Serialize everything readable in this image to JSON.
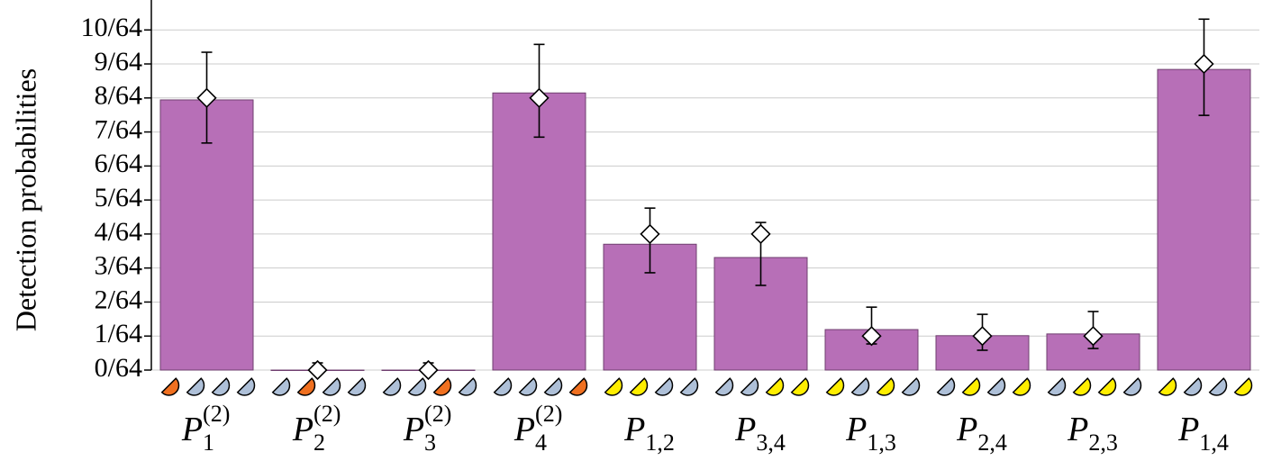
{
  "chart_data": {
    "type": "bar",
    "y_label": "Detection probabilities",
    "categories": [
      {
        "base": "P",
        "sub": "1",
        "sup": "(2)"
      },
      {
        "base": "P",
        "sub": "2",
        "sup": "(2)"
      },
      {
        "base": "P",
        "sub": "3",
        "sup": "(2)"
      },
      {
        "base": "P",
        "sub": "4",
        "sup": "(2)"
      },
      {
        "base": "P",
        "sub": "1,2"
      },
      {
        "base": "P",
        "sub": "3,4"
      },
      {
        "base": "P",
        "sub": "1,3"
      },
      {
        "base": "P",
        "sub": "2,4"
      },
      {
        "base": "P",
        "sub": "2,3"
      },
      {
        "base": "P",
        "sub": "1,4"
      }
    ],
    "series": [
      {
        "color": "#b76fb7",
        "values": [
          0.1241,
          0,
          0,
          0.1273,
          0.0578,
          0.0517,
          0.0186,
          0.0158,
          0.0166,
          0.1381
        ],
        "errors_minus": [
          0.0198,
          0,
          0,
          0.0203,
          0.0131,
          0.0128,
          0.0066,
          0.0067,
          0.0067,
          0.0211
        ],
        "errors_plus": [
          0.0219,
          0.0033,
          0.0033,
          0.0223,
          0.0166,
          0.0161,
          0.0103,
          0.0098,
          0.0103,
          0.0231
        ]
      },
      {
        "color": "#ffffff",
        "marker": "diamond",
        "values": [
          0.125,
          0,
          0,
          0.125,
          0.0625,
          0.0625,
          0.015625,
          0.015625,
          0.015625,
          0.140625
        ]
      }
    ],
    "icon_colors": [
      [
        "#f07020",
        "#aec0d8",
        "#aec0d8",
        "#aec0d8"
      ],
      [
        "#aec0d8",
        "#f07020",
        "#aec0d8",
        "#aec0d8"
      ],
      [
        "#aec0d8",
        "#aec0d8",
        "#f07020",
        "#aec0d8"
      ],
      [
        "#aec0d8",
        "#aec0d8",
        "#aec0d8",
        "#f07020"
      ],
      [
        "#ffee00",
        "#ffee00",
        "#aec0d8",
        "#aec0d8"
      ],
      [
        "#aec0d8",
        "#aec0d8",
        "#ffee00",
        "#ffee00"
      ],
      [
        "#ffee00",
        "#aec0d8",
        "#ffee00",
        "#aec0d8"
      ],
      [
        "#aec0d8",
        "#ffee00",
        "#aec0d8",
        "#ffee00"
      ],
      [
        "#aec0d8",
        "#ffee00",
        "#ffee00",
        "#aec0d8"
      ],
      [
        "#ffee00",
        "#aec0d8",
        "#aec0d8",
        "#ffee00"
      ]
    ],
    "ylim": [
      0,
      0.17
    ],
    "yticks": [
      {
        "value": 0,
        "label": "0/64"
      },
      {
        "value": 0.015625,
        "label": "1/64"
      },
      {
        "value": 0.03125,
        "label": "2/64"
      },
      {
        "value": 0.046875,
        "label": "3/64"
      },
      {
        "value": 0.0625,
        "label": "4/64"
      },
      {
        "value": 0.078125,
        "label": "5/64"
      },
      {
        "value": 0.09375,
        "label": "6/64"
      },
      {
        "value": 0.109375,
        "label": "7/64"
      },
      {
        "value": 0.125,
        "label": "8/64"
      },
      {
        "value": 0.140625,
        "label": "9/64"
      },
      {
        "value": 0.15625,
        "label": "10/64"
      }
    ],
    "grid": true
  }
}
